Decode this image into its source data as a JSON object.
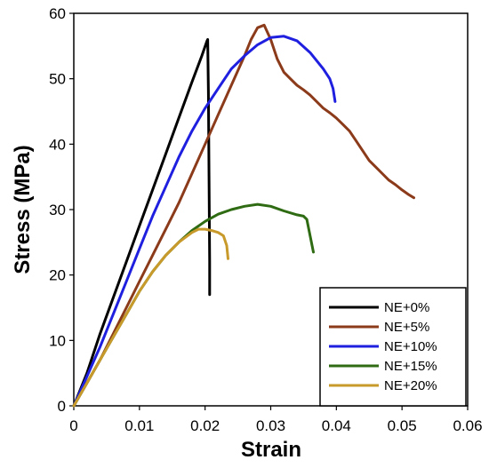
{
  "chart_data": {
    "type": "line",
    "title": "",
    "xlabel": "Strain",
    "ylabel": "Stress (MPa)",
    "xlim": [
      0,
      0.06
    ],
    "ylim": [
      0,
      60
    ],
    "xticks": [
      0,
      0.01,
      0.02,
      0.03,
      0.04,
      0.05,
      0.06
    ],
    "yticks": [
      0,
      10,
      20,
      30,
      40,
      50,
      60
    ],
    "xtick_labels": [
      "0",
      "0.01",
      "0.02",
      "0.03",
      "0.04",
      "0.05",
      "0.06"
    ],
    "ytick_labels": [
      "0",
      "10",
      "20",
      "30",
      "40",
      "50",
      "60"
    ],
    "grid": false,
    "legend_position": "bottom-right",
    "series": [
      {
        "name": "NE+0%",
        "color": "#000000",
        "x": [
          0,
          0.002,
          0.004,
          0.006,
          0.008,
          0.01,
          0.012,
          0.014,
          0.016,
          0.018,
          0.0195,
          0.0203,
          0.0204,
          0.0205,
          0.0206,
          0.0207,
          0.0207
        ],
        "y": [
          0,
          5,
          11,
          16.5,
          22,
          27.5,
          33,
          38.5,
          44,
          49.5,
          53.5,
          55.8,
          56,
          48,
          35,
          22,
          17
        ]
      },
      {
        "name": "NE+5%",
        "color": "#8B3A1A",
        "x": [
          0,
          0.002,
          0.004,
          0.006,
          0.008,
          0.01,
          0.012,
          0.014,
          0.016,
          0.018,
          0.02,
          0.022,
          0.024,
          0.026,
          0.027,
          0.028,
          0.029,
          0.03,
          0.031,
          0.032,
          0.033,
          0.034,
          0.035,
          0.036,
          0.037,
          0.038,
          0.039,
          0.04,
          0.041,
          0.042,
          0.043,
          0.044,
          0.045,
          0.046,
          0.047,
          0.048,
          0.049,
          0.05,
          0.051,
          0.0518
        ],
        "y": [
          0,
          3.5,
          7,
          11,
          15,
          19,
          23,
          27,
          31,
          35.5,
          40,
          44.5,
          49,
          53.5,
          56,
          57.8,
          58.2,
          56,
          53,
          51,
          50,
          49,
          48.3,
          47.5,
          46.5,
          45.5,
          44.8,
          44,
          43,
          42,
          40.5,
          39,
          37.5,
          36.5,
          35.5,
          34.5,
          33.8,
          33,
          32.3,
          31.8
        ]
      },
      {
        "name": "NE+10%",
        "color": "#1F1FE0",
        "x": [
          0,
          0.002,
          0.004,
          0.006,
          0.008,
          0.01,
          0.012,
          0.014,
          0.016,
          0.018,
          0.02,
          0.022,
          0.024,
          0.026,
          0.028,
          0.03,
          0.032,
          0.034,
          0.036,
          0.038,
          0.039,
          0.0395,
          0.0398
        ],
        "y": [
          0,
          4.5,
          9,
          14,
          19,
          24,
          29,
          33.5,
          38,
          42,
          45.5,
          48.5,
          51.5,
          53.5,
          55.2,
          56.3,
          56.5,
          55.8,
          54,
          51.5,
          50,
          48.5,
          46.5
        ]
      },
      {
        "name": "NE+15%",
        "color": "#2E6B12",
        "x": [
          0,
          0.002,
          0.004,
          0.006,
          0.008,
          0.01,
          0.012,
          0.014,
          0.016,
          0.018,
          0.02,
          0.022,
          0.024,
          0.026,
          0.028,
          0.03,
          0.032,
          0.034,
          0.035,
          0.0355,
          0.036,
          0.0365
        ],
        "y": [
          0,
          3.5,
          7,
          10.5,
          14,
          17.5,
          20.5,
          23,
          25,
          26.8,
          28.2,
          29.3,
          30,
          30.5,
          30.8,
          30.5,
          29.8,
          29.2,
          29,
          28.5,
          26,
          23.5
        ]
      },
      {
        "name": "NE+20%",
        "color": "#C89A2B",
        "x": [
          0,
          0.002,
          0.004,
          0.006,
          0.008,
          0.01,
          0.012,
          0.014,
          0.016,
          0.018,
          0.019,
          0.02,
          0.021,
          0.022,
          0.0228,
          0.0233,
          0.0235
        ],
        "y": [
          0,
          3.5,
          7,
          10.5,
          14,
          17.5,
          20.5,
          23,
          25,
          26.5,
          27,
          27,
          26.8,
          26.5,
          26,
          24.5,
          22.5
        ]
      }
    ]
  }
}
